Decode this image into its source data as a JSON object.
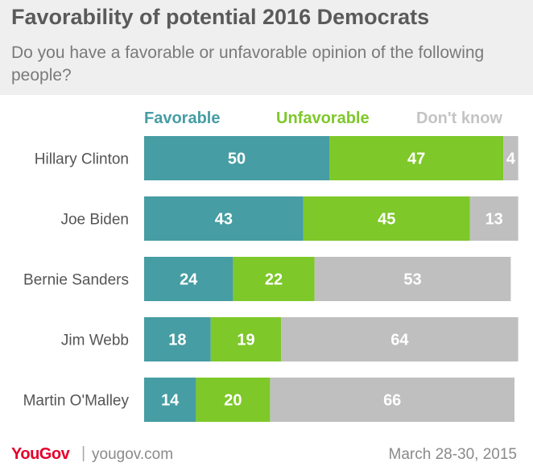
{
  "title": "Favorability of potential 2016 Democrats",
  "subtitle": "Do you have a favorable or unfavorable opinion of the following people?",
  "footer": {
    "logo": "YouGov",
    "separator": "|",
    "site": "yougov.com",
    "date": "March 28-30, 2015"
  },
  "colors": {
    "favorable": "#469da3",
    "unfavorable": "#7ec82a",
    "dont_know": "#bfbfbf",
    "dont_know_label": "#c4c4c4",
    "category_text": "#555555"
  },
  "chart_data": {
    "type": "bar",
    "orientation": "horizontal",
    "stacked": true,
    "legend_position": "top",
    "grid": false,
    "categories": [
      "Hillary Clinton",
      "Joe Biden",
      "Bernie Sanders",
      "Jim Webb",
      "Martin O'Malley"
    ],
    "series": [
      {
        "name": "Favorable",
        "values": [
          50,
          43,
          24,
          18,
          14
        ]
      },
      {
        "name": "Unfavorable",
        "values": [
          47,
          45,
          22,
          19,
          20
        ]
      },
      {
        "name": "Don't know",
        "values": [
          4,
          13,
          53,
          64,
          66
        ]
      }
    ]
  }
}
